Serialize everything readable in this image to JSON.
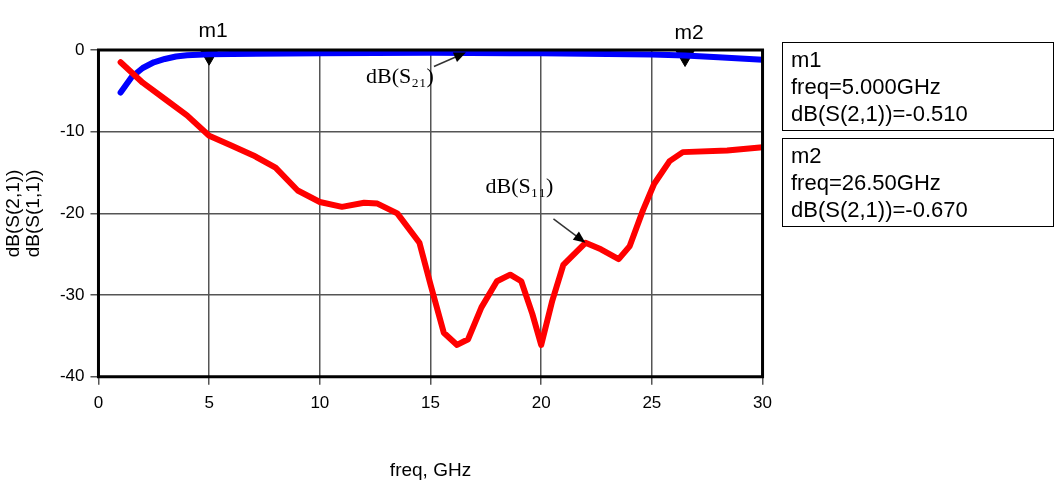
{
  "chart_data": {
    "type": "line",
    "xlabel": "freq, GHz",
    "ylabel": "dB(S(2,1))\ndB(S(1,1))",
    "xlim": [
      0,
      30
    ],
    "xticks": [
      0,
      5,
      10,
      15,
      20,
      25,
      30
    ],
    "ylim": [
      -40,
      0
    ],
    "yticks": [
      -40,
      -30,
      -20,
      -10,
      0
    ],
    "grid": true,
    "legend": false,
    "marker": "none",
    "line_style": "solid",
    "series": [
      {
        "color": "#ff0000",
        "x": [
          1,
          2,
          3,
          4,
          5,
          6,
          7,
          8,
          9,
          10,
          11,
          12,
          12.6,
          13.5,
          14.5,
          15,
          15.6,
          16.2,
          16.7,
          17.3,
          18,
          18.6,
          19.1,
          19.6,
          20,
          20.5,
          21,
          22,
          22.7,
          23.5,
          24,
          24.6,
          25.1,
          25.8,
          26.4,
          28.4,
          30
        ],
        "values": [
          -1.5,
          -4,
          -6,
          -8,
          -10.5,
          -11.7,
          -12.9,
          -14.4,
          -17.2,
          -18.6,
          -19.2,
          -18.7,
          -18.8,
          -20,
          -23.6,
          -28.7,
          -34.6,
          -36.1,
          -35.4,
          -31.5,
          -28.3,
          -27.5,
          -28.3,
          -32.3,
          -36.1,
          -30.7,
          -26.3,
          -23.6,
          -24.4,
          -25.6,
          -24,
          -19.6,
          -16.4,
          -13.6,
          -12.5,
          -12.3,
          -11.9
        ]
      },
      {
        "color": "#0000ff",
        "x": [
          1,
          1.5,
          2,
          2.5,
          3,
          3.5,
          4,
          5,
          10,
          15,
          20,
          25,
          26.5,
          28,
          30
        ],
        "values": [
          -5.2,
          -3.3,
          -2.2,
          -1.5,
          -1.1,
          -0.8,
          -0.65,
          -0.51,
          -0.4,
          -0.35,
          -0.4,
          -0.55,
          -0.67,
          -0.9,
          -1.2
        ]
      },
      {
        "type": "scatter",
        "color": "#000000",
        "marker": "triangle",
        "x": [
          5,
          26.5
        ],
        "values": [
          -0.51,
          -0.67
        ],
        "value_labels": [
          "m1",
          "m2"
        ]
      }
    ],
    "annotations": [
      {
        "text": "dB(S₂₁)",
        "x": 16.6,
        "y": -0.3
      },
      {
        "text": "dB(S₁₁)",
        "x": 22,
        "y": -23.6
      },
      "m1\nfreq=5.000GHz\ndB(S(2,1))=-0.510",
      "m2\nfreq=26.50GHz\ndB(S(2,1))=-0.670"
    ]
  }
}
